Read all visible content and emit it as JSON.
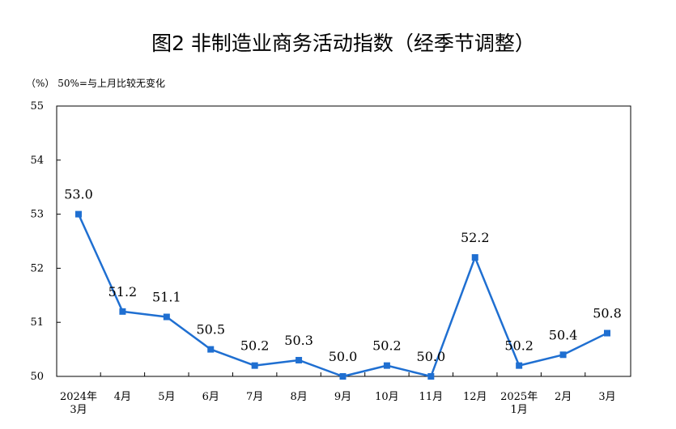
{
  "title": "图2  非制造业商务活动指数（经季节调整）",
  "unit_note": "（%） 50%=与上月比较无变化",
  "chart_data": {
    "type": "line",
    "title": "图2  非制造业商务活动指数（经季节调整）",
    "ylabel": "（%）",
    "annotation": "50%=与上月比较无变化",
    "categories": [
      [
        "2024年",
        "3月"
      ],
      [
        "4月"
      ],
      [
        "5月"
      ],
      [
        "6月"
      ],
      [
        "7月"
      ],
      [
        "8月"
      ],
      [
        "9月"
      ],
      [
        "10月"
      ],
      [
        "11月"
      ],
      [
        "12月"
      ],
      [
        "2025年",
        "1月"
      ],
      [
        "2月"
      ],
      [
        "3月"
      ]
    ],
    "values": [
      53.0,
      51.2,
      51.1,
      50.5,
      50.2,
      50.3,
      50.0,
      50.2,
      50.0,
      52.2,
      50.2,
      50.4,
      50.8
    ],
    "data_labels": [
      "53.0",
      "51.2",
      "51.1",
      "50.5",
      "50.2",
      "50.3",
      "50.0",
      "50.2",
      "50.0",
      "52.2",
      "50.2",
      "50.4",
      "50.8"
    ],
    "ylim": [
      50,
      55
    ],
    "yticks": [
      "50",
      "51",
      "52",
      "53",
      "54",
      "55"
    ],
    "grid": false,
    "line_color": "#1f6fd1",
    "marker": "square"
  }
}
